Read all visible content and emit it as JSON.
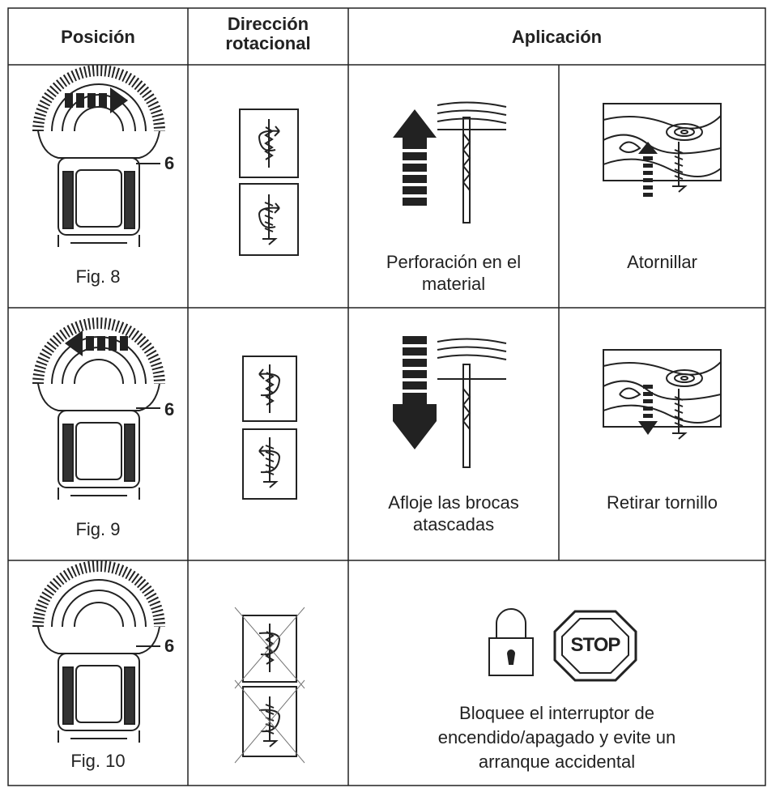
{
  "table": {
    "headers": [
      "Posición",
      "Dirección rotacional",
      "Aplicación"
    ],
    "rows": [
      {
        "figure": "Fig. 8",
        "callout": "6",
        "applications": [
          "Perforación en el material",
          "Atornillar"
        ]
      },
      {
        "figure": "Fig. 9",
        "callout": "6",
        "applications": [
          "Afloje las brocas atascadas",
          "Retirar tornillo"
        ]
      },
      {
        "figure": "Fig. 10",
        "callout": "6",
        "application": "Bloquee el interruptor de encendido/apagado y evite un arranque accidental",
        "sign": "STOP"
      }
    ]
  }
}
